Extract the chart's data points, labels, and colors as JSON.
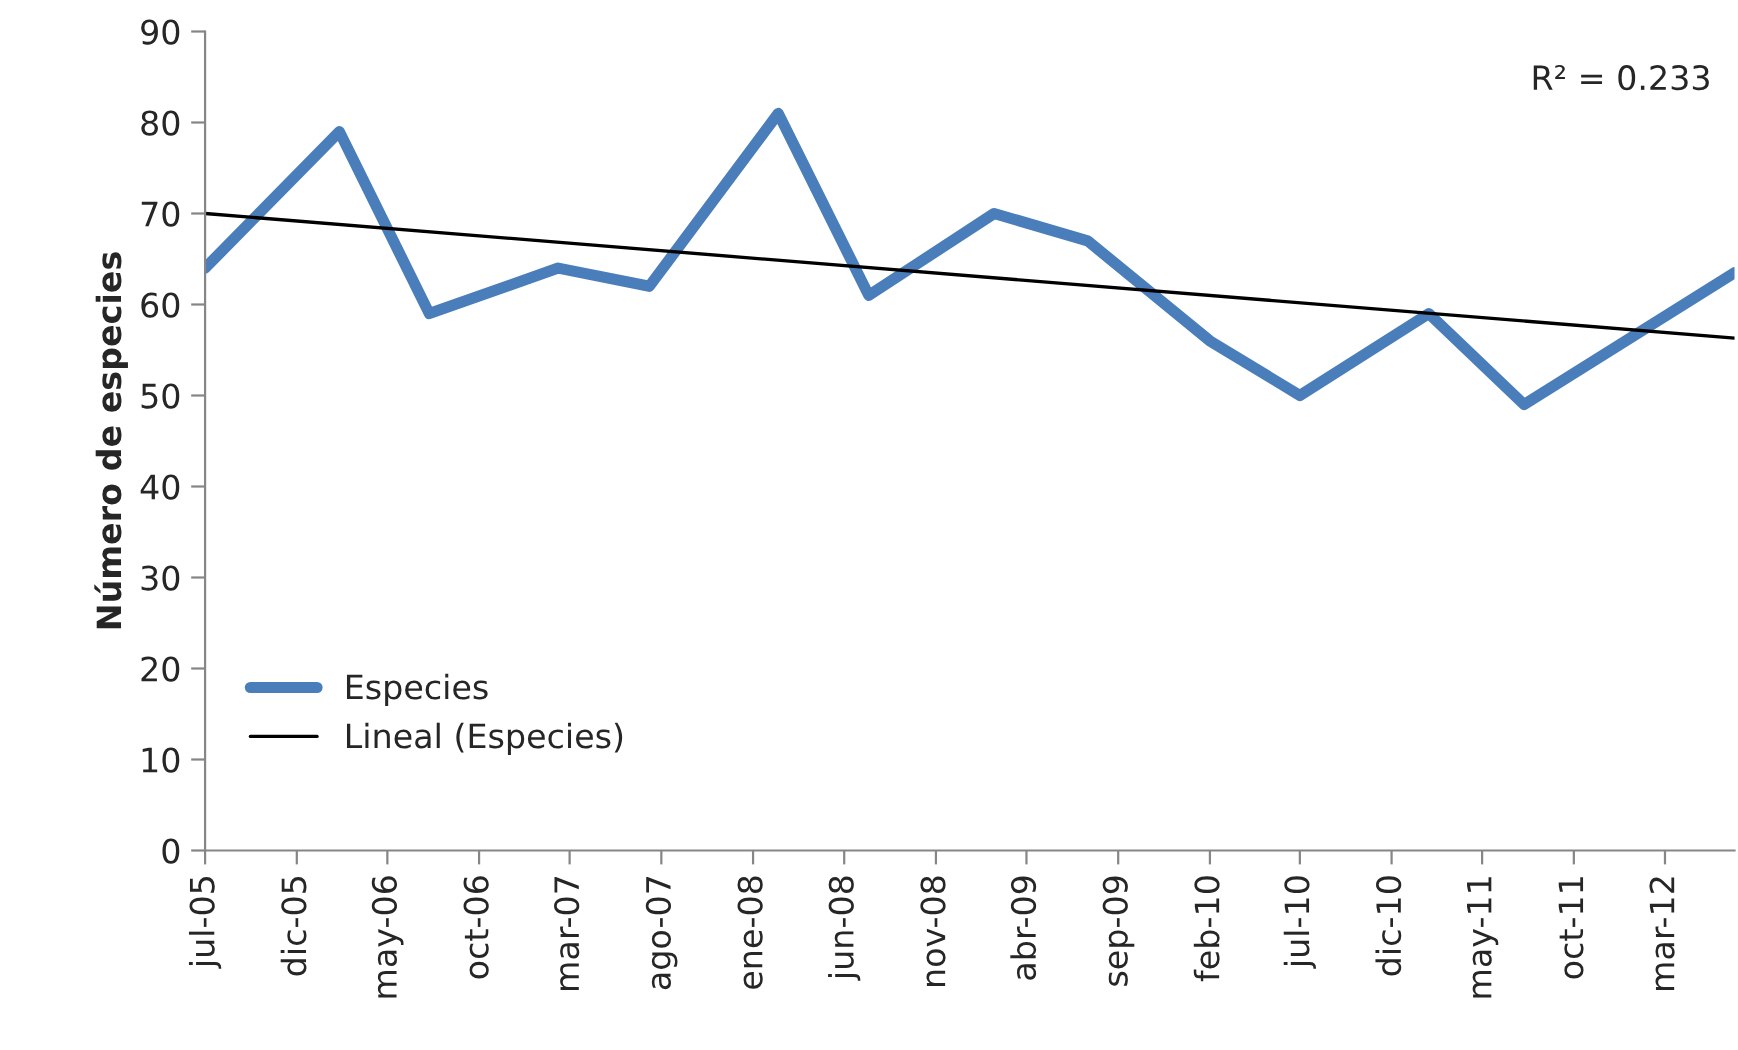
{
  "chart_data": {
    "type": "line",
    "ylabel": "Número de especies",
    "annotations": [
      "R² = 0.233"
    ],
    "xlim": [
      "2005-07-01",
      "2012-06-25"
    ],
    "xticks": [
      {
        "value": "2005-07-01",
        "label": "jul-05"
      },
      {
        "value": "2005-12-01",
        "label": "dic-05"
      },
      {
        "value": "2006-05-01",
        "label": "may-06"
      },
      {
        "value": "2006-10-01",
        "label": "oct-06"
      },
      {
        "value": "2007-03-01",
        "label": "mar-07"
      },
      {
        "value": "2007-08-01",
        "label": "ago-07"
      },
      {
        "value": "2008-01-01",
        "label": "ene-08"
      },
      {
        "value": "2008-06-01",
        "label": "jun-08"
      },
      {
        "value": "2008-11-01",
        "label": "nov-08"
      },
      {
        "value": "2009-04-01",
        "label": "abr-09"
      },
      {
        "value": "2009-09-01",
        "label": "sep-09"
      },
      {
        "value": "2010-02-01",
        "label": "feb-10"
      },
      {
        "value": "2010-07-01",
        "label": "jul-10"
      },
      {
        "value": "2010-12-01",
        "label": "dic-10"
      },
      {
        "value": "2011-05-01",
        "label": "may-11"
      },
      {
        "value": "2011-10-01",
        "label": "oct-11"
      },
      {
        "value": "2012-03-01",
        "label": "mar-12"
      }
    ],
    "ylim": [
      0,
      90
    ],
    "yticks": [
      0,
      10,
      20,
      30,
      40,
      50,
      60,
      70,
      80,
      90
    ],
    "grid": false,
    "legend": "bottom left",
    "series": [
      {
        "name": "Especies",
        "color": "#4a7ebb",
        "x": [
          "2005-07-01",
          "2006-02-10",
          "2006-07-10",
          "2007-02-10",
          "2007-07-12",
          "2008-02-12",
          "2008-07-12",
          "2009-02-06",
          "2009-07-12",
          "2010-02-01",
          "2010-07-01",
          "2011-02-01",
          "2011-07-10",
          "2012-06-25"
        ],
        "values": [
          64,
          79,
          59,
          64,
          62,
          81,
          61,
          70,
          67,
          56,
          50,
          59,
          49,
          63.5
        ]
      },
      {
        "name": "Lineal (Especies)",
        "color": "#000000",
        "x": [
          "2005-07-01",
          "2012-06-25"
        ],
        "values": [
          70,
          56.3
        ]
      }
    ]
  }
}
